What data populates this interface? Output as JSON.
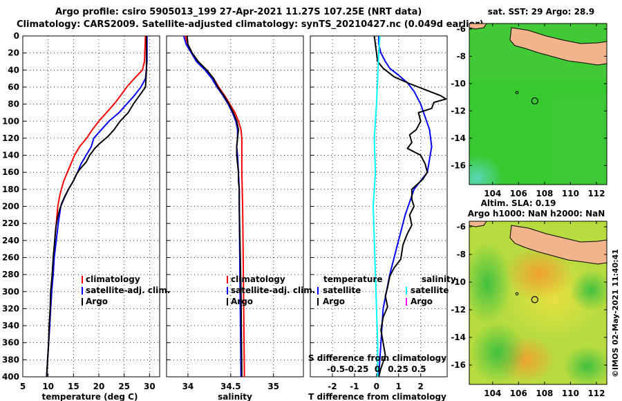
{
  "title_line1": "Argo profile: csiro 5905013_199 27-Apr-2021 11.27S 107.25E (NRT data)",
  "title_line2": "Climatology: CARS2009. Satellite-adjusted climatology: synTS_20210427.nc (0.049d earlier)",
  "credit": "©IMOS 02-May-2021 11:40:41",
  "chart_data": [
    {
      "id": "temperature",
      "type": "line",
      "xlabel": "temperature (deg C)",
      "ylabel": "",
      "xlim": [
        5,
        32
      ],
      "ylim": [
        400,
        0
      ],
      "xticks": [
        "5",
        "10",
        "15",
        "20",
        "25",
        "30"
      ],
      "xtick_values": [
        5,
        10,
        15,
        20,
        25,
        30
      ],
      "yticks": [
        "0",
        "20",
        "40",
        "60",
        "80",
        "100",
        "120",
        "140",
        "160",
        "180",
        "200",
        "220",
        "240",
        "260",
        "280",
        "300",
        "320",
        "340",
        "360",
        "380",
        "400"
      ],
      "legend": [
        "climatology",
        "satellite-adj. clim.",
        "Argo"
      ],
      "series": [
        {
          "name": "climatology",
          "color": "#ff0000",
          "points": [
            [
              29.2,
              0
            ],
            [
              29.0,
              30
            ],
            [
              28.6,
              40
            ],
            [
              27.0,
              50
            ],
            [
              25.5,
              60
            ],
            [
              24.3,
              70
            ],
            [
              23.0,
              80
            ],
            [
              21.5,
              90
            ],
            [
              20.0,
              100
            ],
            [
              18.7,
              110
            ],
            [
              17.6,
              120
            ],
            [
              16.2,
              130
            ],
            [
              15.2,
              140
            ],
            [
              14.5,
              150
            ],
            [
              13.8,
              160
            ],
            [
              13.1,
              170
            ],
            [
              12.6,
              180
            ],
            [
              12.2,
              190
            ],
            [
              11.9,
              200
            ],
            [
              11.6,
              220
            ],
            [
              11.3,
              240
            ],
            [
              11.1,
              260
            ],
            [
              10.9,
              280
            ],
            [
              10.7,
              300
            ],
            [
              10.5,
              320
            ],
            [
              10.3,
              340
            ],
            [
              10.1,
              360
            ],
            [
              9.9,
              380
            ],
            [
              9.7,
              400
            ]
          ]
        },
        {
          "name": "satellite-adj. clim.",
          "color": "#0000ff",
          "points": [
            [
              29.5,
              0
            ],
            [
              29.5,
              30
            ],
            [
              29.2,
              50
            ],
            [
              28.3,
              60
            ],
            [
              27.0,
              70
            ],
            [
              25.5,
              80
            ],
            [
              24.0,
              90
            ],
            [
              22.0,
              100
            ],
            [
              20.5,
              110
            ],
            [
              19.0,
              120
            ],
            [
              18.5,
              130
            ],
            [
              17.5,
              140
            ],
            [
              16.5,
              150
            ],
            [
              15.8,
              160
            ],
            [
              15.0,
              170
            ],
            [
              14.0,
              180
            ],
            [
              13.2,
              190
            ],
            [
              12.5,
              200
            ],
            [
              12.0,
              220
            ],
            [
              11.6,
              240
            ],
            [
              11.2,
              260
            ],
            [
              11.0,
              280
            ],
            [
              10.7,
              300
            ],
            [
              10.5,
              320
            ],
            [
              10.3,
              340
            ],
            [
              10.1,
              360
            ],
            [
              9.9,
              380
            ],
            [
              9.7,
              400
            ]
          ]
        },
        {
          "name": "Argo",
          "color": "#000000",
          "points": [
            [
              29.4,
              0
            ],
            [
              29.4,
              40
            ],
            [
              29.2,
              60
            ],
            [
              28.0,
              70
            ],
            [
              26.8,
              80
            ],
            [
              25.8,
              90
            ],
            [
              24.2,
              100
            ],
            [
              23.0,
              110
            ],
            [
              21.8,
              118
            ],
            [
              20.2,
              126
            ],
            [
              19.2,
              132
            ],
            [
              18.2,
              140
            ],
            [
              17.5,
              148
            ],
            [
              16.3,
              156
            ],
            [
              15.6,
              162
            ],
            [
              15.0,
              170
            ],
            [
              14.0,
              180
            ],
            [
              13.3,
              188
            ],
            [
              12.7,
              196
            ],
            [
              12.2,
              205
            ],
            [
              11.8,
              215
            ],
            [
              11.5,
              225
            ],
            [
              11.3,
              240
            ],
            [
              11.0,
              260
            ],
            [
              10.8,
              280
            ],
            [
              10.5,
              300
            ],
            [
              10.4,
              320
            ],
            [
              10.2,
              340
            ],
            [
              10.1,
              360
            ],
            [
              9.9,
              380
            ],
            [
              9.7,
              400
            ]
          ]
        }
      ]
    },
    {
      "id": "salinity",
      "type": "line",
      "xlabel": "salinity",
      "ylabel": "",
      "xlim": [
        33.75,
        35.35
      ],
      "ylim": [
        400,
        0
      ],
      "xticks": [
        "34",
        "34.5",
        "35"
      ],
      "xtick_values": [
        34,
        34.5,
        35
      ],
      "legend": [
        "climatology",
        "satellite-adj. clim.",
        "Argo"
      ],
      "series": [
        {
          "name": "climatology",
          "color": "#ff0000",
          "points": [
            [
              33.97,
              0
            ],
            [
              34.0,
              10
            ],
            [
              34.05,
              20
            ],
            [
              34.12,
              30
            ],
            [
              34.22,
              40
            ],
            [
              34.3,
              50
            ],
            [
              34.36,
              60
            ],
            [
              34.43,
              70
            ],
            [
              34.49,
              80
            ],
            [
              34.55,
              90
            ],
            [
              34.59,
              100
            ],
            [
              34.62,
              110
            ],
            [
              34.63,
              120
            ],
            [
              34.63,
              140
            ],
            [
              34.63,
              160
            ],
            [
              34.64,
              200
            ],
            [
              34.65,
              300
            ],
            [
              34.66,
              400
            ]
          ]
        },
        {
          "name": "satellite-adj. clim.",
          "color": "#0000ff",
          "points": [
            [
              33.95,
              0
            ],
            [
              33.98,
              10
            ],
            [
              34.04,
              20
            ],
            [
              34.1,
              30
            ],
            [
              34.2,
              40
            ],
            [
              34.28,
              50
            ],
            [
              34.34,
              60
            ],
            [
              34.41,
              70
            ],
            [
              34.47,
              80
            ],
            [
              34.52,
              90
            ],
            [
              34.56,
              100
            ],
            [
              34.58,
              110
            ],
            [
              34.58,
              120
            ],
            [
              34.57,
              130
            ],
            [
              34.58,
              140
            ],
            [
              34.59,
              160
            ],
            [
              34.6,
              180
            ],
            [
              34.6,
              200
            ],
            [
              34.61,
              300
            ],
            [
              34.62,
              400
            ]
          ]
        },
        {
          "name": "Argo",
          "color": "#000000",
          "points": [
            [
              33.99,
              0
            ],
            [
              34.0,
              10
            ],
            [
              34.05,
              20
            ],
            [
              34.12,
              30
            ],
            [
              34.22,
              40
            ],
            [
              34.3,
              50
            ],
            [
              34.35,
              60
            ],
            [
              34.42,
              70
            ],
            [
              34.48,
              80
            ],
            [
              34.53,
              90
            ],
            [
              34.57,
              100
            ],
            [
              34.59,
              110
            ],
            [
              34.58,
              120
            ],
            [
              34.57,
              130
            ],
            [
              34.57,
              140
            ],
            [
              34.58,
              150
            ],
            [
              34.59,
              160
            ],
            [
              34.59,
              170
            ],
            [
              34.6,
              180
            ],
            [
              34.6,
              200
            ],
            [
              34.62,
              300
            ],
            [
              34.63,
              400
            ]
          ]
        }
      ]
    },
    {
      "id": "difference",
      "type": "line",
      "xlabel": "T difference from climatology",
      "top_axis_label": "S difference from climatology",
      "xlim": [
        -3,
        3.2
      ],
      "ylim": [
        400,
        0
      ],
      "xticks": [
        "-2",
        "-1",
        "0",
        "1",
        "2"
      ],
      "xtick_values": [
        -2,
        -1,
        0,
        1,
        2
      ],
      "s_xticks": [
        "-0.5",
        "-0.25",
        "0",
        "0.25",
        "0.5"
      ],
      "s_xtick_values": [
        -0.5,
        -0.25,
        0,
        0.25,
        0.5
      ],
      "legend_temperature_title": "temperature",
      "legend_salinity_title": "salinity",
      "legend_temperature": [
        "satellite",
        "Argo"
      ],
      "legend_salinity": [
        "satellite",
        "Argo"
      ],
      "legend_colors": {
        "t_satellite": "#0000ff",
        "t_argo": "#000000",
        "s_satellite": "#00ffff",
        "s_argo": "#ff00ff"
      },
      "series": [
        {
          "name": "T satellite",
          "color": "#0000ff",
          "points": [
            [
              0.1,
              0
            ],
            [
              0.1,
              10
            ],
            [
              0.2,
              20
            ],
            [
              0.4,
              30
            ],
            [
              0.6,
              38
            ],
            [
              1.0,
              46
            ],
            [
              1.4,
              55
            ],
            [
              1.7,
              65
            ],
            [
              2.0,
              80
            ],
            [
              2.2,
              95
            ],
            [
              2.4,
              110
            ],
            [
              2.5,
              130
            ],
            [
              2.3,
              160
            ],
            [
              1.7,
              180
            ],
            [
              1.3,
              210
            ],
            [
              0.9,
              250
            ],
            [
              0.6,
              280
            ],
            [
              0.3,
              320
            ],
            [
              0.2,
              360
            ],
            [
              0.1,
              400
            ]
          ]
        },
        {
          "name": "T Argo",
          "color": "#000000",
          "points": [
            [
              -0.1,
              0
            ],
            [
              0,
              20
            ],
            [
              0.05,
              30
            ],
            [
              0.3,
              38
            ],
            [
              0.8,
              48
            ],
            [
              1.5,
              56
            ],
            [
              2.3,
              64
            ],
            [
              2.9,
              70
            ],
            [
              3.15,
              74
            ],
            [
              2.6,
              78
            ],
            [
              2.5,
              85
            ],
            [
              1.9,
              90
            ],
            [
              2.0,
              100
            ],
            [
              1.8,
              110
            ],
            [
              1.5,
              116
            ],
            [
              1.6,
              125
            ],
            [
              1.4,
              132
            ],
            [
              2.0,
              140
            ],
            [
              2.2,
              150
            ],
            [
              2.3,
              160
            ],
            [
              2.1,
              168
            ],
            [
              1.6,
              180
            ],
            [
              1.6,
              192
            ],
            [
              1.7,
              200
            ],
            [
              1.5,
              210
            ],
            [
              1.6,
              222
            ],
            [
              1.4,
              232
            ],
            [
              1.2,
              245
            ],
            [
              1.1,
              262
            ],
            [
              0.8,
              272
            ],
            [
              0.6,
              282
            ],
            [
              0.5,
              295
            ],
            [
              0.4,
              305
            ],
            [
              0.5,
              318
            ],
            [
              0.3,
              330
            ],
            [
              0.2,
              345
            ],
            [
              0.3,
              360
            ],
            [
              0.4,
              375
            ],
            [
              0.2,
              390
            ],
            [
              0.1,
              400
            ]
          ]
        },
        {
          "name": "S satellite",
          "color": "#00ffff",
          "points": [
            [
              0.15,
              0
            ],
            [
              0.1,
              20
            ],
            [
              0.05,
              50
            ],
            [
              0,
              80
            ],
            [
              -0.1,
              120
            ],
            [
              -0.05,
              160
            ],
            [
              -0.15,
              200
            ],
            [
              -0.1,
              240
            ],
            [
              -0.05,
              280
            ],
            [
              0,
              320
            ],
            [
              0.05,
              360
            ],
            [
              0.05,
              400
            ]
          ]
        }
      ]
    },
    {
      "id": "sst_map",
      "type": "heatmap",
      "title": "sat. SST: 29 Argo: 28.9",
      "xticks": [
        "104",
        "106",
        "108",
        "110",
        "112"
      ],
      "xtick_values": [
        104,
        106,
        108,
        110,
        112
      ],
      "yticks": [
        "-6",
        "-8",
        "-10",
        "-12",
        "-14",
        "-16"
      ],
      "ytick_values": [
        -6,
        -8,
        -10,
        -12,
        -14,
        -16
      ],
      "xlim": [
        102.2,
        112.8
      ],
      "ylim": [
        -17.4,
        -5.6
      ],
      "argo_position": [
        107.25,
        -11.27
      ]
    },
    {
      "id": "sla_map",
      "type": "heatmap",
      "title_line1": "Altim. SLA: 0.19",
      "title_line2": "Argo h1000: NaN h2000: NaN",
      "xticks": [
        "104",
        "106",
        "108",
        "110",
        "112"
      ],
      "xtick_values": [
        104,
        106,
        108,
        110,
        112
      ],
      "yticks": [
        "-6",
        "-8",
        "-10",
        "-12",
        "-14",
        "-16"
      ],
      "ytick_values": [
        -6,
        -8,
        -10,
        -12,
        -14,
        -16
      ],
      "xlim": [
        102.2,
        112.8
      ],
      "ylim": [
        -17.4,
        -5.6
      ],
      "argo_position": [
        107.25,
        -11.27
      ]
    }
  ]
}
